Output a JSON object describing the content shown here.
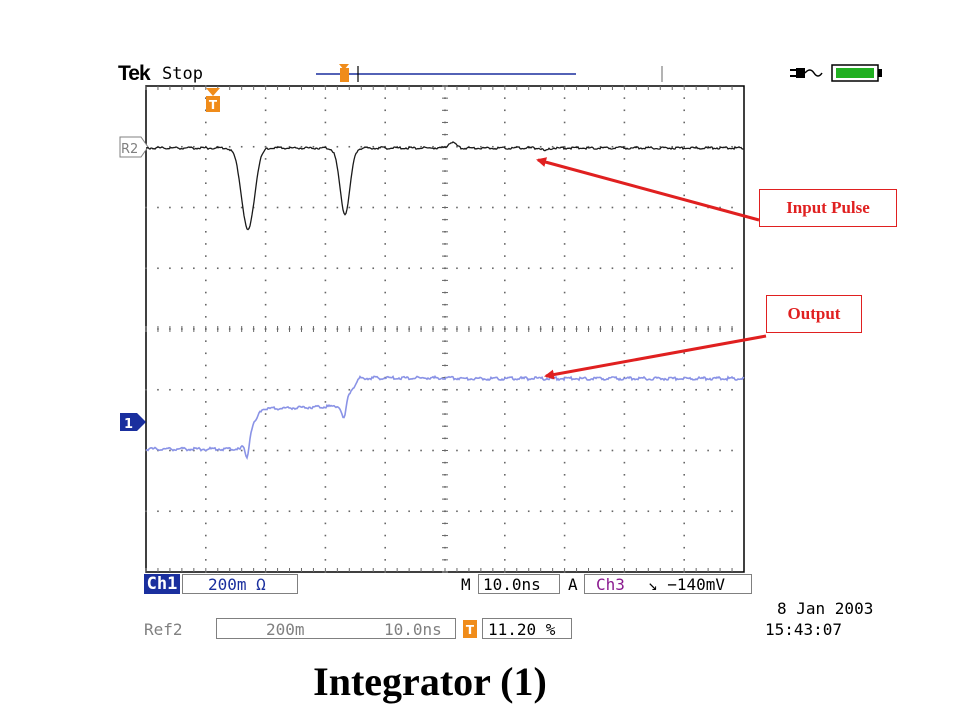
{
  "scope": {
    "brand": "Tek",
    "acq_state": "Stop",
    "ref_marker": "R2",
    "channel_marker": "1",
    "trigger_marker": "T",
    "ch1_label": "Ch1",
    "ch1_scale": "200m Ω",
    "m_label": "M",
    "time_base": "10.0ns",
    "a_label": "A",
    "trigger_source": "Ch3",
    "trigger_level": "↘ −140mV",
    "ref2_label": "Ref2",
    "ref2_scale": "200m",
    "ref2_time": "10.0ns",
    "trigger_position": "11.20 %",
    "date": "8 Jan  2003",
    "time": "15:43:07",
    "colors": {
      "ch1_trace": "#8a93e6",
      "ref_trace": "#1a1a1a",
      "grid": "#666666",
      "ch1_blue": "#1a2f9e",
      "trigger_orange": "#f08c1a",
      "battery_green": "#22b022"
    }
  },
  "annotations": {
    "input_pulse": "Input Pulse",
    "output": "Output",
    "arrow_color": "#e02020"
  },
  "title": "Integrator (1)"
}
